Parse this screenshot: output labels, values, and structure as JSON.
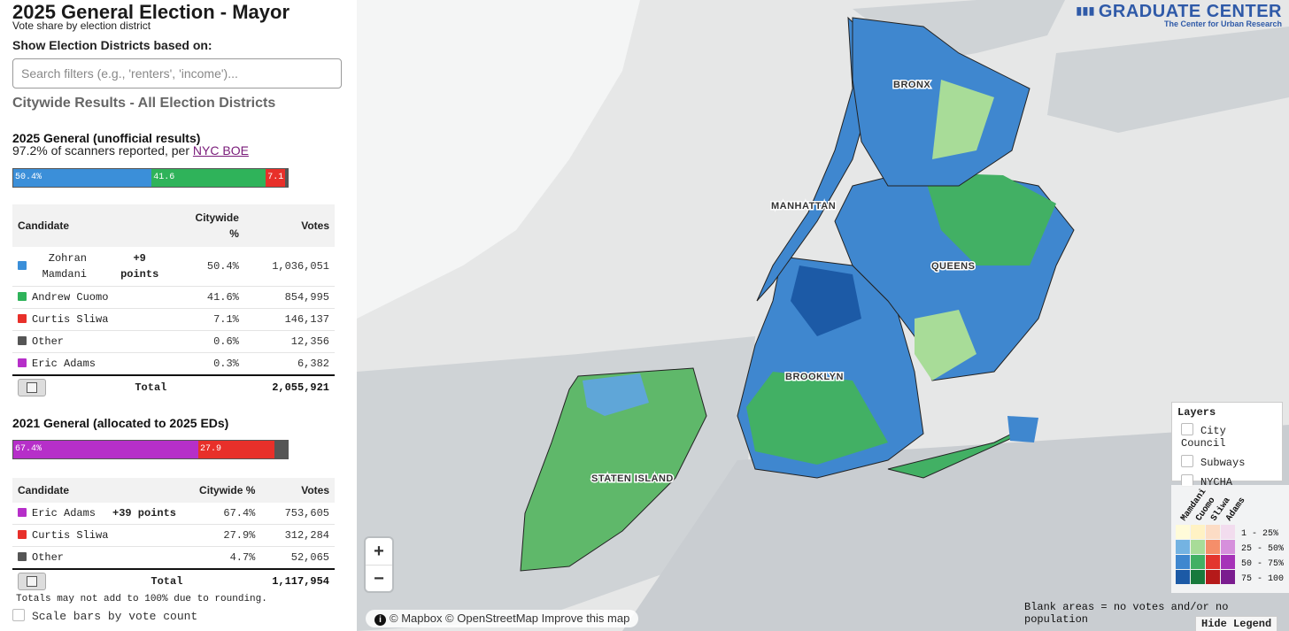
{
  "header": {
    "title": "2025 General Election - Mayor",
    "subtitle": "Vote share by election district",
    "filter_heading": "Show Election Districts based on:",
    "search_placeholder": "Search filters (e.g., 'renters', 'income')...",
    "citywide_heading": "Citywide Results - All Election Districts"
  },
  "results_2025": {
    "title": "2025 General (unofficial results)",
    "note_prefix": "97.2% of scanners reported, per ",
    "note_link": "NYC BOE",
    "bar": [
      {
        "label": "50.4%",
        "share": 50.4,
        "color": "#3b8fd9"
      },
      {
        "label": "41.6",
        "share": 41.6,
        "color": "#2fb35a"
      },
      {
        "label": "7.1",
        "share": 7.1,
        "color": "#e8302a"
      },
      {
        "label": "",
        "share": 0.9,
        "color": "#555555"
      }
    ],
    "columns": {
      "candidate": "Candidate",
      "pct_line1": "Citywide",
      "pct_line2": "%",
      "votes": "Votes"
    },
    "rows": [
      {
        "name_line1": "Zohran",
        "name_line2": "Mamdani",
        "lead_line1": "+9",
        "lead_line2": "points",
        "pct": "50.4%",
        "votes": "1,036,051",
        "color": "#3b8fd9"
      },
      {
        "name": "Andrew Cuomo",
        "pct": "41.6%",
        "votes": "854,995",
        "color": "#2fb35a"
      },
      {
        "name": "Curtis Sliwa",
        "pct": "7.1%",
        "votes": "146,137",
        "color": "#e8302a"
      },
      {
        "name": "Other",
        "pct": "0.6%",
        "votes": "12,356",
        "color": "#555555"
      },
      {
        "name": "Eric Adams",
        "pct": "0.3%",
        "votes": "6,382",
        "color": "#b62fc9"
      }
    ],
    "total_label": "Total",
    "total_votes": "2,055,921"
  },
  "results_2021": {
    "title": "2021 General (allocated to 2025 EDs)",
    "bar": [
      {
        "label": "67.4%",
        "share": 67.4,
        "color": "#b62fc9"
      },
      {
        "label": "27.9",
        "share": 27.9,
        "color": "#e8302a"
      },
      {
        "label": "",
        "share": 4.7,
        "color": "#555555"
      }
    ],
    "columns": {
      "candidate": "Candidate",
      "pct": "Citywide %",
      "votes": "Votes"
    },
    "rows": [
      {
        "name": "Eric Adams",
        "lead": "+39 points",
        "pct": "67.4%",
        "votes": "753,605",
        "color": "#b62fc9"
      },
      {
        "name": "Curtis Sliwa",
        "pct": "27.9%",
        "votes": "312,284",
        "color": "#e8302a"
      },
      {
        "name": "Other",
        "pct": "4.7%",
        "votes": "52,065",
        "color": "#555555"
      }
    ],
    "total_label": "Total",
    "total_votes": "1,117,954"
  },
  "footer": {
    "rounding_note": "Totals may not add to 100% due to rounding.",
    "scale_label": "Scale bars by vote count"
  },
  "map": {
    "logo_main": "GRADUATE CENTER",
    "logo_sub": "The Center for Urban Research",
    "borough_labels": [
      "BRONX",
      "MANHATTAN",
      "QUEENS",
      "BROOKLYN",
      "STATEN ISLAND"
    ],
    "zoom_in": "+",
    "zoom_out": "−",
    "attribution": "© Mapbox © OpenStreetMap Improve this map",
    "layers": {
      "heading": "Layers",
      "items": [
        "City Council",
        "Subways",
        "NYCHA"
      ]
    },
    "legend": {
      "candidates": [
        "Mamdani",
        "Cuomo",
        "Sliwa",
        "Adams"
      ],
      "bins": [
        "1 - 25%",
        "25 - 50%",
        "50 - 75%",
        "75 - 100"
      ],
      "colors": [
        [
          "#fffbd9",
          "#fff2c4",
          "#fcdcc5",
          "#f2dcee"
        ],
        [
          "#74b3e2",
          "#a8dc98",
          "#f58e6a",
          "#d690dc"
        ],
        [
          "#3f87cf",
          "#42b064",
          "#e3352e",
          "#a632b8"
        ],
        [
          "#1c5aa6",
          "#187a3c",
          "#b51a1a",
          "#7a1c8f"
        ]
      ]
    },
    "blank_note": "Blank areas = no votes and/or no population",
    "hide_legend": "Hide Legend"
  }
}
